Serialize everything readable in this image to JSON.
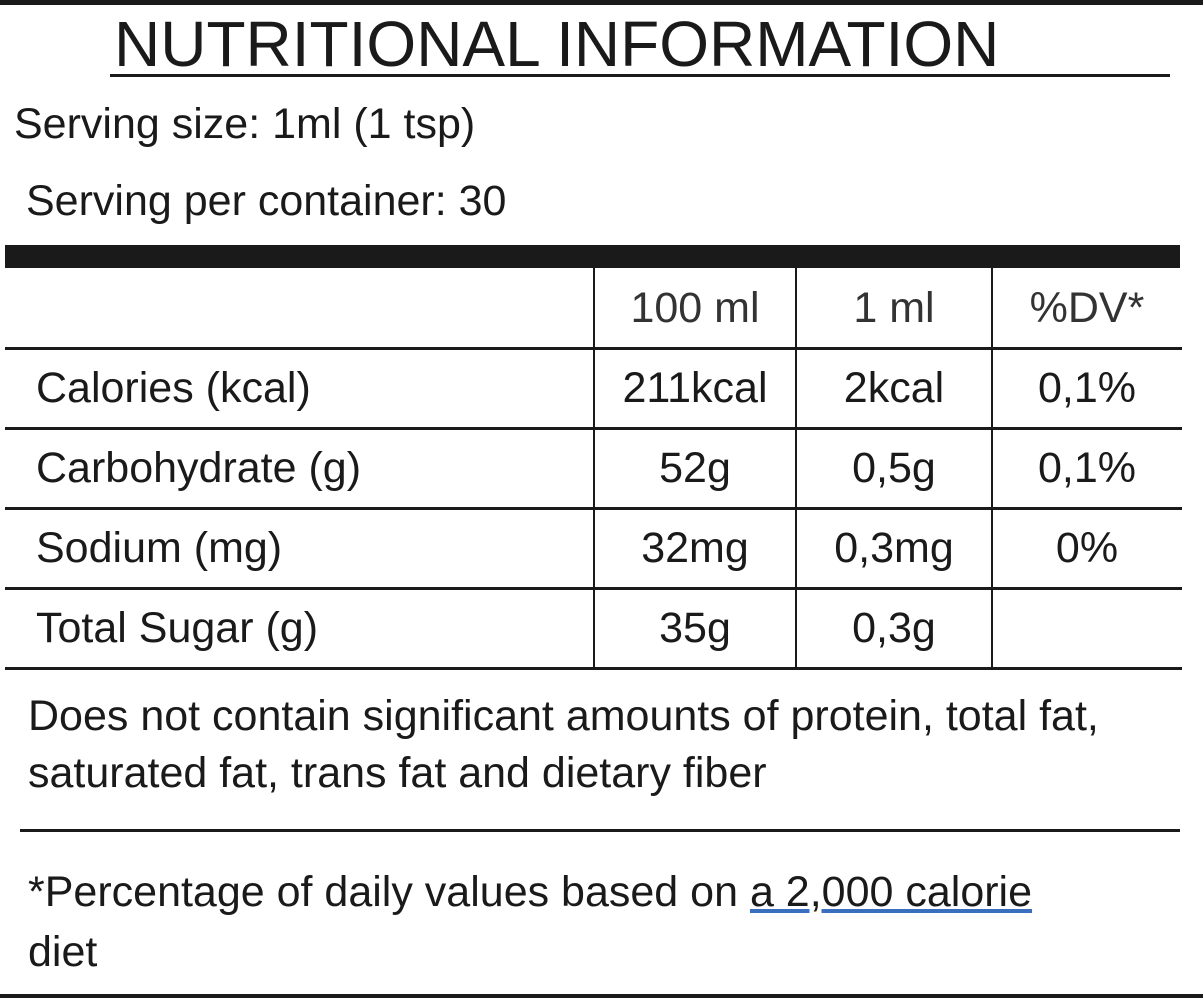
{
  "title": "NUTRITIONAL INFORMATION",
  "serving_size": "Serving size: 1ml (1 tsp)",
  "servings_per_container": "Serving per container: 30",
  "table": {
    "columns": [
      "100 ml",
      "1 ml",
      "%DV*"
    ],
    "rows": [
      [
        "Calories (kcal)",
        "211kcal",
        "2kcal",
        "0,1%"
      ],
      [
        "Carbohydrate (g)",
        "52g",
        "0,5g",
        "0,1%"
      ],
      [
        "Sodium (mg)",
        "32mg",
        "0,3mg",
        "0%"
      ],
      [
        "Total Sugar (g)",
        "35g",
        "0,3g"
      ]
    ]
  },
  "note": "Does not contain significant amounts of protein, total fat, saturated fat, trans fat and dietary fiber",
  "footnote": {
    "text": "*Percentage of daily values based on",
    "link": "a 2,000 calorie",
    "tail": "diet"
  }
}
